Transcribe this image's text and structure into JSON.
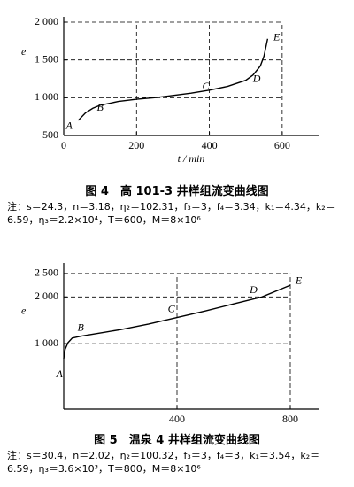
{
  "chart_data": [
    {
      "type": "line",
      "caption": "图 4　高 101-3 井样组流变曲线图",
      "notes": [
        "注：s＝24.3，n＝3.18，η₂＝102.31，f₃＝3，f₄＝3.34，k₁＝4.34，k₂＝",
        "6.59，η₃＝2.2×10⁴，T＝600，M＝8×10⁶"
      ],
      "x_label": "t / min",
      "y_label": "e",
      "x": [
        40,
        60,
        80,
        100,
        150,
        200,
        250,
        300,
        350,
        400,
        450,
        500,
        520,
        540,
        550,
        560
      ],
      "values": [
        700,
        800,
        860,
        900,
        950,
        980,
        1000,
        1030,
        1060,
        1100,
        1150,
        1230,
        1300,
        1420,
        1550,
        1780
      ],
      "color": "#000000",
      "xlim": [
        0,
        700
      ],
      "ylim": [
        500,
        2000
      ],
      "xticks": [
        0,
        200,
        400,
        600
      ],
      "yticks": [
        500,
        {
          "value": 1000,
          "label": "1 000"
        },
        {
          "value": 1500,
          "label": "1 500"
        },
        {
          "value": 2000,
          "label": "2 000"
        }
      ],
      "grid": "dashed",
      "annotations": [
        {
          "text": "A",
          "x": 15,
          "y": 620
        },
        {
          "text": "B",
          "x": 100,
          "y": 860
        },
        {
          "text": "C",
          "x": 390,
          "y": 1140
        },
        {
          "text": "D",
          "x": 530,
          "y": 1240
        },
        {
          "text": "E",
          "x": 585,
          "y": 1790
        }
      ]
    },
    {
      "type": "line",
      "caption": "图 5　温泉 4 井样组流变曲线图",
      "notes": [
        "注：s＝30.4，n＝2.02，η₂＝100.32，f₃＝3，f₄＝3，k₁＝3.54，k₂＝",
        "6.59，η₃＝3.6×10³，T＝800，M＝8×10⁶"
      ],
      "x_label": "t / min",
      "y_label": "e",
      "x": [
        0,
        5,
        15,
        30,
        60,
        100,
        150,
        200,
        300,
        400,
        500,
        600,
        700,
        800
      ],
      "values": [
        680,
        880,
        1020,
        1120,
        1160,
        1200,
        1250,
        1300,
        1420,
        1560,
        1700,
        1850,
        2000,
        2250
      ],
      "color": "#000000",
      "xlim": [
        0,
        900
      ],
      "ylim": [
        -400,
        2650
      ],
      "xticks": [
        400,
        800
      ],
      "yticks": [
        {
          "value": 1000,
          "label": "1 000"
        },
        {
          "value": 2000,
          "label": "2 000"
        },
        {
          "value": 2500,
          "label": "2 500"
        }
      ],
      "grid": "dashed",
      "annotations": [
        {
          "text": "A",
          "x": -15,
          "y": 330
        },
        {
          "text": "B",
          "x": 60,
          "y": 1330
        },
        {
          "text": "C",
          "x": 380,
          "y": 1730
        },
        {
          "text": "D",
          "x": 670,
          "y": 2130
        },
        {
          "text": "E",
          "x": 830,
          "y": 2330
        }
      ]
    }
  ]
}
